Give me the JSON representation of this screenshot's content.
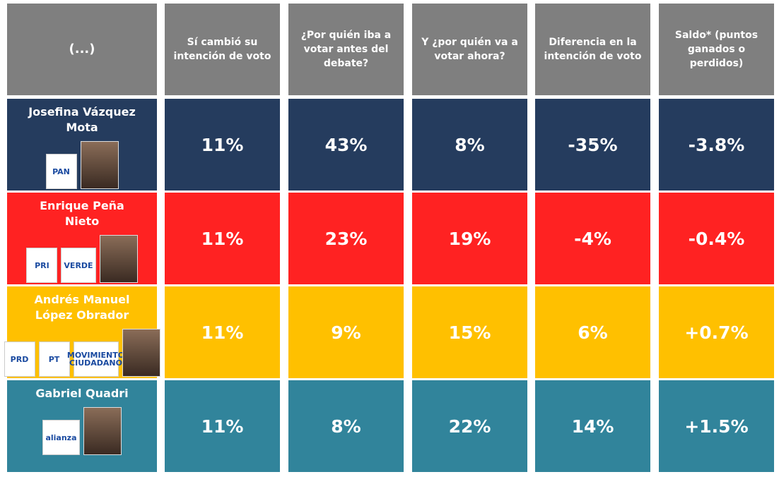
{
  "table": {
    "header": [
      "(...)",
      "Sí cambió su intención de voto",
      "¿Por quién iba a votar antes del debate?",
      "Y ¿por quién va a votar ahora?",
      "Diferencia en la intención de voto",
      "Saldo* (puntos ganados o perdidos)"
    ],
    "header_color": "#7f7f7f",
    "rows": [
      {
        "name": "Josefina Vázquez Mota",
        "color": "#253c5e",
        "logos": [
          "PAN"
        ],
        "values": [
          "11%",
          "43%",
          "8%",
          "-35%",
          "-3.8%"
        ]
      },
      {
        "name": "Enrique Peña Nieto",
        "color": "#ff2222",
        "logos": [
          "PRI",
          "VERDE"
        ],
        "values": [
          "11%",
          "23%",
          "19%",
          "-4%",
          "-0.4%"
        ]
      },
      {
        "name": "Andrés Manuel López Obrador",
        "color": "#ffc000",
        "logos": [
          "PRD",
          "PT",
          "MOVIMIENTO CIUDADANO"
        ],
        "values": [
          "11%",
          "9%",
          "15%",
          "6%",
          "+0.7%"
        ]
      },
      {
        "name": "Gabriel Quadri",
        "color": "#31849b",
        "logos": [
          "alianza"
        ],
        "values": [
          "11%",
          "8%",
          "22%",
          "14%",
          "+1.5%"
        ]
      }
    ]
  }
}
